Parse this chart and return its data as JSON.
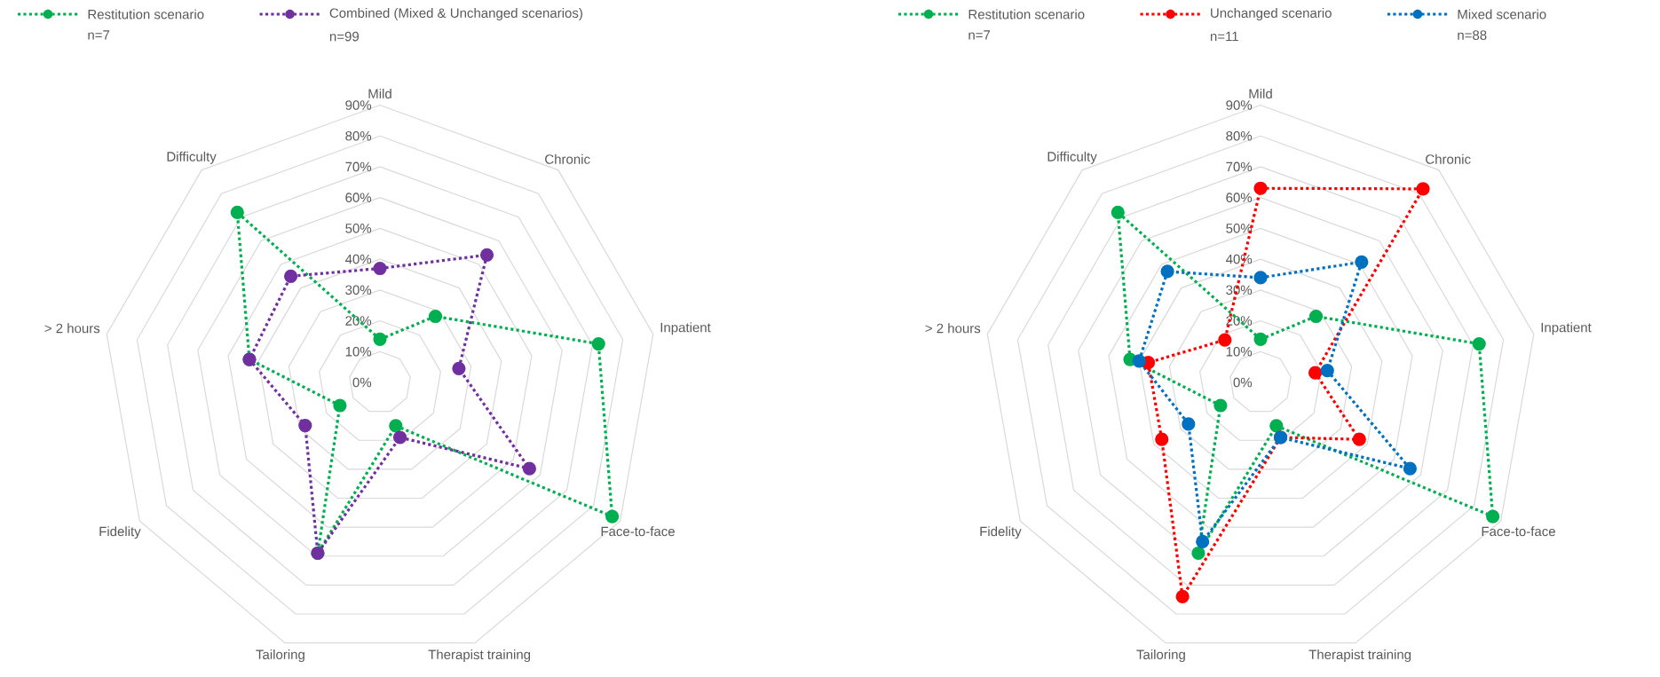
{
  "chart_data": [
    {
      "type": "radar",
      "categories": [
        "Mild",
        "Chronic",
        "Inpatient",
        "Face-to-face",
        "Therapist training",
        "Tailoring",
        "Fidelity",
        "> 2 hours",
        "Difficulty"
      ],
      "series": [
        {
          "name": "Restitution scenario",
          "color": "#00b050",
          "values": [
            14,
            28,
            72,
            87,
            15,
            59,
            15,
            43,
            72
          ]
        },
        {
          "name": "Combined (Mixed & Unchanged scenarios)",
          "color": "#7030a0",
          "values": [
            37,
            54,
            26,
            56,
            19,
            59,
            28,
            43,
            45
          ]
        }
      ],
      "annotations": [
        "n=7",
        "n=99"
      ],
      "ylim": [
        0,
        90
      ],
      "yticks": [
        {
          "value": 0,
          "label": "0%"
        },
        {
          "value": 10,
          "label": "10%"
        },
        {
          "value": 20,
          "label": "20%"
        },
        {
          "value": 30,
          "label": "30%"
        },
        {
          "value": 40,
          "label": "40%"
        },
        {
          "value": 50,
          "label": "50%"
        },
        {
          "value": 60,
          "label": "60%"
        },
        {
          "value": 70,
          "label": "70%"
        },
        {
          "value": 80,
          "label": "80%"
        },
        {
          "value": 90,
          "label": "90%"
        }
      ],
      "grid": true,
      "legend": "top",
      "marker": "circle",
      "line_style": "dotted"
    },
    {
      "type": "radar",
      "categories": [
        "Mild",
        "Chronic",
        "Inpatient",
        "Face-to-face",
        "Therapist training",
        "Tailoring",
        "Fidelity",
        "> 2 hours",
        "Difficulty"
      ],
      "series": [
        {
          "name": "Restitution scenario",
          "color": "#00b050",
          "values": [
            14,
            28,
            72,
            87,
            15,
            59,
            15,
            43,
            72
          ]
        },
        {
          "name": "Unchanged scenario",
          "color": "#ff0000",
          "values": [
            63,
            82,
            18,
            37,
            19,
            74,
            37,
            37,
            18
          ]
        },
        {
          "name": "Mixed scenario",
          "color": "#0070c0",
          "values": [
            34,
            51,
            22,
            56,
            19,
            55,
            27,
            40,
            47
          ]
        }
      ],
      "annotations": [
        "n=7",
        "n=11",
        "n=88"
      ],
      "ylim": [
        0,
        90
      ],
      "yticks": [
        {
          "value": 0,
          "label": "0%"
        },
        {
          "value": 10,
          "label": "10%"
        },
        {
          "value": 20,
          "label": "20%"
        },
        {
          "value": 30,
          "label": "30%"
        },
        {
          "value": 40,
          "label": "40%"
        },
        {
          "value": 50,
          "label": "50%"
        },
        {
          "value": 60,
          "label": "60%"
        },
        {
          "value": 70,
          "label": "70%"
        },
        {
          "value": 80,
          "label": "80%"
        },
        {
          "value": 90,
          "label": "90%"
        }
      ],
      "grid": true,
      "legend": "top",
      "marker": "circle",
      "line_style": "dotted"
    }
  ]
}
